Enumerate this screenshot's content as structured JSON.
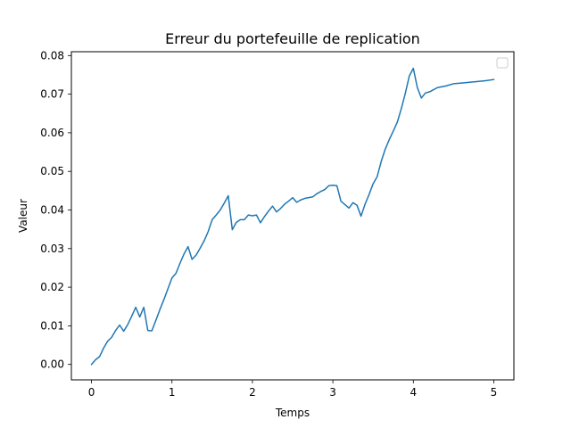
{
  "chart_data": {
    "type": "line",
    "title": "Erreur du portefeuille de replication",
    "xlabel": "Temps",
    "ylabel": "Valeur",
    "xlim": [
      -0.25,
      5.25
    ],
    "ylim": [
      -0.004,
      0.081
    ],
    "xticks": [
      0,
      1,
      2,
      3,
      4,
      5
    ],
    "xtick_labels": [
      "0",
      "1",
      "2",
      "3",
      "4",
      "5"
    ],
    "yticks": [
      0.0,
      0.01,
      0.02,
      0.03,
      0.04,
      0.05,
      0.06,
      0.07,
      0.08
    ],
    "ytick_labels": [
      "0.00",
      "0.01",
      "0.02",
      "0.03",
      "0.04",
      "0.05",
      "0.06",
      "0.07",
      "0.08"
    ],
    "grid": false,
    "legend": "top-right",
    "legend_entries": [],
    "series": [
      {
        "color": "#1f77b4",
        "x": [
          0,
          0.05,
          0.1,
          0.15,
          0.2,
          0.25,
          0.3,
          0.35,
          0.4,
          0.45,
          0.5,
          0.55,
          0.6,
          0.65,
          0.7,
          0.75,
          0.8,
          0.85,
          0.9,
          0.95,
          1.0,
          1.05,
          1.1,
          1.15,
          1.2,
          1.25,
          1.3,
          1.35,
          1.4,
          1.45,
          1.5,
          1.55,
          1.6,
          1.65,
          1.7,
          1.75,
          1.8,
          1.85,
          1.9,
          1.95,
          2.0,
          2.05,
          2.1,
          2.15,
          2.2,
          2.25,
          2.3,
          2.35,
          2.4,
          2.45,
          2.5,
          2.55,
          2.6,
          2.65,
          2.7,
          2.75,
          2.8,
          2.85,
          2.9,
          2.95,
          3.0,
          3.05,
          3.1,
          3.15,
          3.2,
          3.25,
          3.3,
          3.35,
          3.4,
          3.45,
          3.5,
          3.55,
          3.6,
          3.65,
          3.7,
          3.75,
          3.8,
          3.85,
          3.9,
          3.95,
          4.0,
          4.05,
          4.1,
          4.15,
          4.2,
          4.3,
          4.4,
          4.5,
          4.6,
          4.7,
          4.8,
          4.9,
          5.0
        ],
        "y": [
          0.0,
          0.0012,
          0.002,
          0.0042,
          0.006,
          0.007,
          0.0088,
          0.0102,
          0.0086,
          0.0103,
          0.0125,
          0.0148,
          0.0123,
          0.0148,
          0.0088,
          0.0087,
          0.0114,
          0.0142,
          0.0168,
          0.0196,
          0.0224,
          0.0236,
          0.0262,
          0.0286,
          0.0305,
          0.0272,
          0.0283,
          0.0301,
          0.032,
          0.0344,
          0.0375,
          0.0387,
          0.04,
          0.0418,
          0.0437,
          0.0349,
          0.0368,
          0.0375,
          0.0375,
          0.0387,
          0.0385,
          0.0387,
          0.0367,
          0.0383,
          0.0397,
          0.041,
          0.0395,
          0.0404,
          0.0415,
          0.0423,
          0.0432,
          0.042,
          0.0426,
          0.043,
          0.0432,
          0.0434,
          0.0442,
          0.0448,
          0.0453,
          0.0463,
          0.0464,
          0.0463,
          0.0423,
          0.0414,
          0.0405,
          0.0419,
          0.0412,
          0.0384,
          0.0415,
          0.044,
          0.0468,
          0.0486,
          0.0525,
          0.0557,
          0.0582,
          0.0604,
          0.0627,
          0.0662,
          0.0702,
          0.0747,
          0.0767,
          0.0717,
          0.069,
          0.0703,
          0.0706,
          0.0717,
          0.0721,
          0.0727,
          0.0729,
          0.0731,
          0.0733,
          0.0735,
          0.0738
        ]
      }
    ]
  }
}
